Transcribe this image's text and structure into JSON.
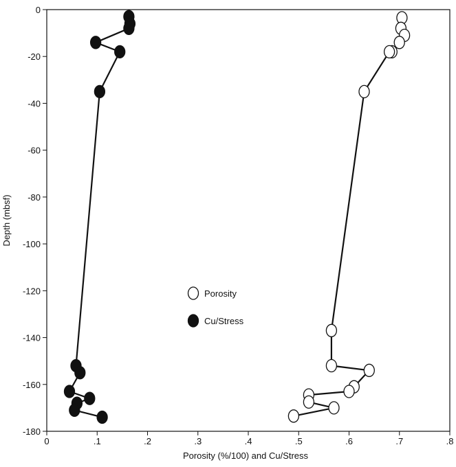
{
  "chart_data": {
    "type": "scatter",
    "title": "",
    "xlabel": "Porosity (%/100) and Cu/Stress",
    "ylabel": "Depth (mbsf)",
    "xlim": [
      0,
      0.8
    ],
    "ylim": [
      -180,
      0
    ],
    "xticks": [
      0,
      0.1,
      0.2,
      0.3,
      0.4,
      0.5,
      0.6,
      0.7,
      0.8
    ],
    "xtick_labels": [
      "0",
      ".1",
      ".2",
      ".3",
      ".4",
      ".5",
      ".6",
      ".7",
      ".8"
    ],
    "yticks": [
      0,
      -20,
      -40,
      -60,
      -80,
      -100,
      -120,
      -140,
      -160,
      -180
    ],
    "ytick_labels": [
      "0",
      "-20",
      "-40",
      "-60",
      "-80",
      "-100",
      "-120",
      "-140",
      "-160",
      "-180"
    ],
    "grid": false,
    "legend": {
      "placement": "center"
    },
    "series": [
      {
        "name": "Porosity",
        "marker": "open-circle",
        "color": "#111111",
        "connected": true,
        "points": [
          {
            "x": 0.705,
            "y": -3.5
          },
          {
            "x": 0.703,
            "y": -8
          },
          {
            "x": 0.71,
            "y": -11
          },
          {
            "x": 0.7,
            "y": -14
          },
          {
            "x": 0.685,
            "y": -18
          },
          {
            "x": 0.68,
            "y": -18
          },
          {
            "x": 0.63,
            "y": -35
          },
          {
            "x": 0.565,
            "y": -137
          },
          {
            "x": 0.565,
            "y": -152
          },
          {
            "x": 0.64,
            "y": -154
          },
          {
            "x": 0.61,
            "y": -161
          },
          {
            "x": 0.6,
            "y": -163
          },
          {
            "x": 0.52,
            "y": -164.5
          },
          {
            "x": 0.52,
            "y": -167.5
          },
          {
            "x": 0.57,
            "y": -170
          },
          {
            "x": 0.49,
            "y": -173.5
          }
        ]
      },
      {
        "name": "Cu/Stress",
        "marker": "filled-circle",
        "color": "#111111",
        "connected": true,
        "points": [
          {
            "x": 0.163,
            "y": -3
          },
          {
            "x": 0.165,
            "y": -6
          },
          {
            "x": 0.163,
            "y": -8
          },
          {
            "x": 0.097,
            "y": -14
          },
          {
            "x": 0.145,
            "y": -18
          },
          {
            "x": 0.105,
            "y": -35
          },
          {
            "x": 0.058,
            "y": -152
          },
          {
            "x": 0.066,
            "y": -155
          },
          {
            "x": 0.045,
            "y": -163
          },
          {
            "x": 0.085,
            "y": -166
          },
          {
            "x": 0.06,
            "y": -168
          },
          {
            "x": 0.055,
            "y": -171
          },
          {
            "x": 0.11,
            "y": -174
          }
        ]
      }
    ]
  }
}
